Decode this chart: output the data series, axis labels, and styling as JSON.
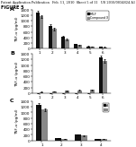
{
  "header_text": "Patent Application Publication   Feb. 11, 2010  Sheet 5 of 11   US 2010/0034824 A1",
  "figure_label": "FIGURE 5",
  "chart1": {
    "title": "A",
    "ylabel": "TNF-α (pg/ml)",
    "ylim": [
      0,
      1400
    ],
    "yticks": [
      0,
      200,
      400,
      600,
      800,
      1000,
      1200,
      1400
    ],
    "groups": [
      "1",
      "2",
      "3",
      "4",
      "5",
      "6"
    ],
    "bar1_values": [
      1280,
      820,
      420,
      160,
      90,
      70
    ],
    "bar2_values": [
      1150,
      700,
      340,
      130,
      75,
      55
    ],
    "bar1_color": "#111111",
    "bar2_color": "#888888",
    "error1": [
      60,
      50,
      35,
      20,
      12,
      10
    ],
    "error2": [
      55,
      45,
      30,
      18,
      10,
      8
    ],
    "legend": [
      "fMLF",
      "Compound X"
    ]
  },
  "chart2": {
    "title": "B",
    "ylabel": "TNF-α (pg/ml)",
    "ylim": [
      0,
      1400
    ],
    "yticks": [
      0,
      200,
      400,
      600,
      800,
      1000,
      1200,
      1400
    ],
    "groups": [
      "1",
      "2",
      "3",
      "4",
      "5",
      "6"
    ],
    "bar1_values": [
      5,
      5,
      5,
      5,
      5,
      1280
    ],
    "bar2_values": [
      40,
      60,
      80,
      100,
      120,
      1150
    ],
    "bar1_color": "#111111",
    "bar2_color": "#888888",
    "error1": [
      3,
      3,
      3,
      3,
      3,
      60
    ],
    "error2": [
      8,
      10,
      12,
      14,
      16,
      55
    ]
  },
  "chart3": {
    "title": "C",
    "ylabel": "TNF-α (pg/ml)",
    "ylim": [
      0,
      1400
    ],
    "yticks": [
      0,
      200,
      400,
      600,
      800,
      1000,
      1200,
      1400
    ],
    "groups": [
      "1",
      "2",
      "3",
      "4"
    ],
    "bar1_values": [
      1280,
      80,
      200,
      60
    ],
    "bar2_values": [
      1100,
      60,
      170,
      45
    ],
    "bar1_color": "#111111",
    "bar2_color": "#888888",
    "error1": [
      60,
      10,
      20,
      8
    ],
    "error2": [
      55,
      8,
      18,
      6
    ],
    "legend": [
      "A",
      "B"
    ]
  },
  "bg_color": "#ffffff",
  "text_color": "#000000",
  "font_size": 3.5,
  "header_fontsize": 2.5
}
